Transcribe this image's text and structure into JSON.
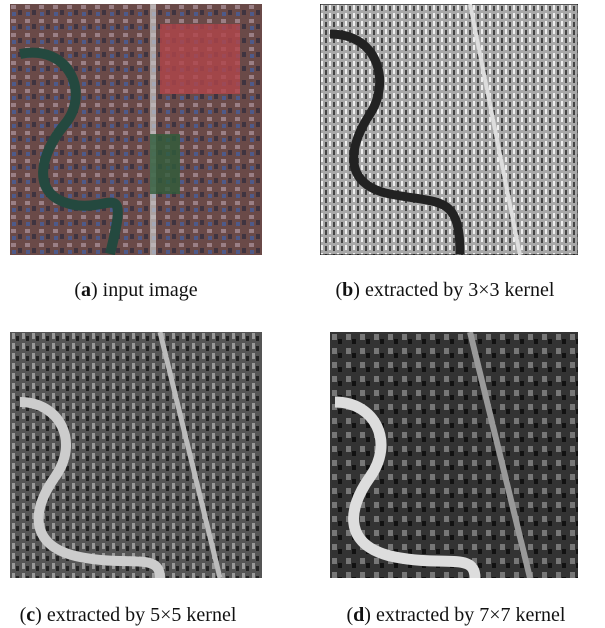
{
  "panels": [
    {
      "caption_runs": [
        {
          "text": "("
        },
        {
          "text": "a",
          "bold": true
        },
        {
          "text": ") input image"
        }
      ]
    },
    {
      "caption_runs": [
        {
          "text": "("
        },
        {
          "text": "b",
          "bold": true
        },
        {
          "text": ") extracted by 3×3 kernel"
        }
      ]
    },
    {
      "caption_runs": [
        {
          "text": "("
        },
        {
          "text": "c",
          "bold": true
        },
        {
          "text": ") extracted by 5×5 kernel"
        }
      ]
    },
    {
      "caption_runs": [
        {
          "text": "("
        },
        {
          "text": "d",
          "bold": true
        },
        {
          "text": ") extracted by 7×7 kernel"
        }
      ]
    }
  ]
}
